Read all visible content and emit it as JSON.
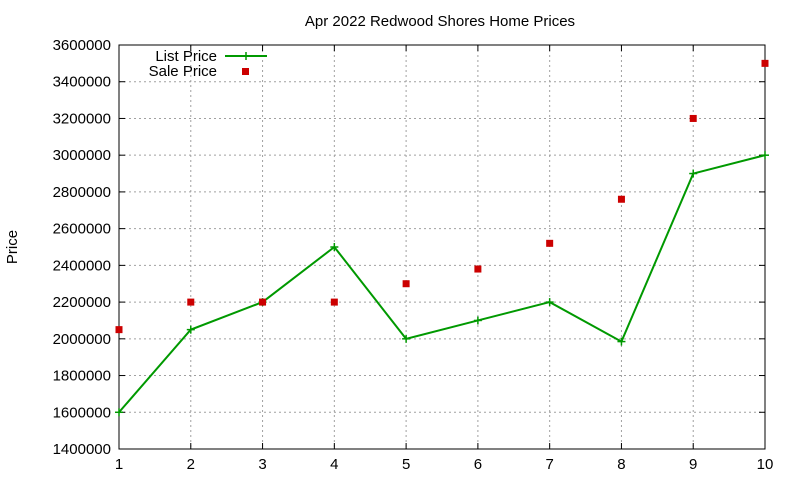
{
  "chart_data": {
    "type": "line",
    "title": "Apr 2022 Redwood Shores Home Prices",
    "xlabel": "",
    "ylabel": "Price",
    "x": [
      1,
      2,
      3,
      4,
      5,
      6,
      7,
      8,
      9,
      10
    ],
    "xlim": [
      1,
      10
    ],
    "ylim": [
      1400000,
      3600000
    ],
    "xticks": [
      "1",
      "2",
      "3",
      "4",
      "5",
      "6",
      "7",
      "8",
      "9",
      "10"
    ],
    "yticks": [
      "1400000",
      "1600000",
      "1800000",
      "2000000",
      "2200000",
      "2400000",
      "2600000",
      "2800000",
      "3000000",
      "3200000",
      "3400000",
      "3600000"
    ],
    "grid": true,
    "legend_position": "top-left",
    "series": [
      {
        "name": "List Price",
        "style": "line-with-plus-markers",
        "color": "#009900",
        "values": [
          1600000,
          2050000,
          2200000,
          2500000,
          2000000,
          2100000,
          2200000,
          1985000,
          2900000,
          3000000
        ]
      },
      {
        "name": "Sale Price",
        "style": "square-markers",
        "color": "#cc0000",
        "values": [
          2050000,
          2200000,
          2200000,
          2200000,
          2300000,
          2380000,
          2520000,
          2760000,
          3200000,
          3500000
        ]
      }
    ]
  }
}
